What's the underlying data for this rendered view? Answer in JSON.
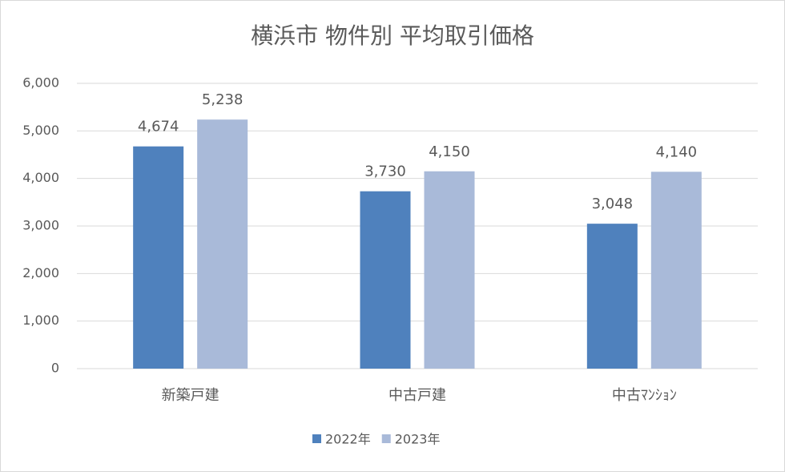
{
  "chart_data": {
    "type": "bar",
    "title": "横浜市 物件別 平均取引価格",
    "categories": [
      "新築戸建",
      "中古戸建",
      "中古ﾏﾝｼｮﾝ"
    ],
    "series": [
      {
        "name": "2022年",
        "color": "#4f81bd",
        "values": [
          4674,
          3730,
          3048
        ],
        "value_labels": [
          "4,674",
          "3,730",
          "3,048"
        ]
      },
      {
        "name": "2023年",
        "color": "#a9bad9",
        "values": [
          5238,
          4150,
          4140
        ],
        "value_labels": [
          "5,238",
          "4,150",
          "4,140"
        ]
      }
    ],
    "ylim": [
      0,
      6000
    ],
    "yticks": [
      0,
      {
        "value": 1000,
        "label": "1,000"
      },
      {
        "value": 2000,
        "label": "2,000"
      },
      {
        "value": 3000,
        "label": "3,000"
      },
      {
        "value": 4000,
        "label": "4,000"
      },
      {
        "value": 5000,
        "label": "5,000"
      },
      {
        "value": 6000,
        "label": "6,000"
      }
    ],
    "grid": true,
    "legend": "bottom"
  }
}
